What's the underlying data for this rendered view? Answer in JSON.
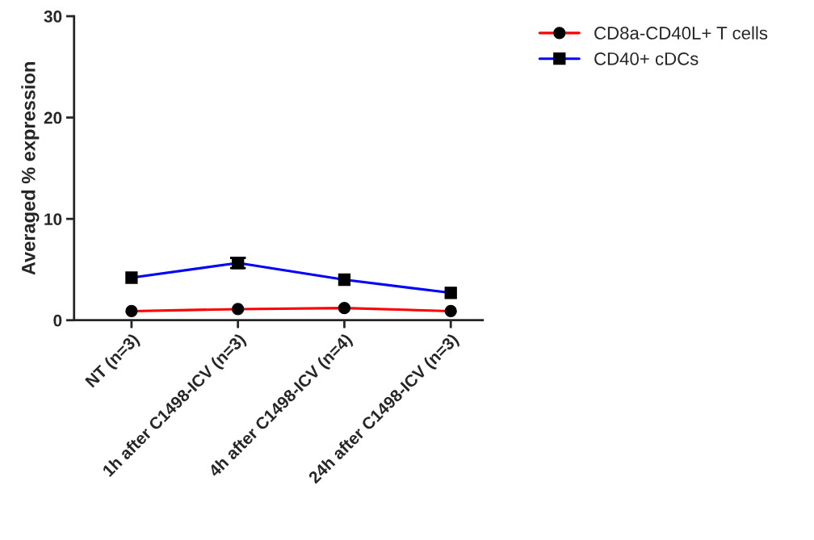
{
  "chart_data": {
    "type": "line",
    "ylabel": "Averaged % expression",
    "categories": [
      "NT (n=3)",
      "1h after C1498-ICV (n=3)",
      "4h after C1498-ICV (n=4)",
      "24h after C1498-ICV (n=3)"
    ],
    "series": [
      {
        "name": "CD8a-CD40L+ T cells",
        "color": "#ff0000",
        "marker": "circle",
        "values": [
          0.9,
          1.1,
          1.2,
          0.9
        ]
      },
      {
        "name": "CD40+ cDCs",
        "color": "#0000ff",
        "marker": "square",
        "values": [
          4.2,
          5.65,
          4.0,
          2.7
        ],
        "errors": [
          null,
          0.5,
          null,
          null
        ]
      }
    ],
    "ylim": [
      0,
      30
    ],
    "yticks": [
      0,
      10,
      20,
      30
    ],
    "grid": false,
    "legend": "top right"
  }
}
